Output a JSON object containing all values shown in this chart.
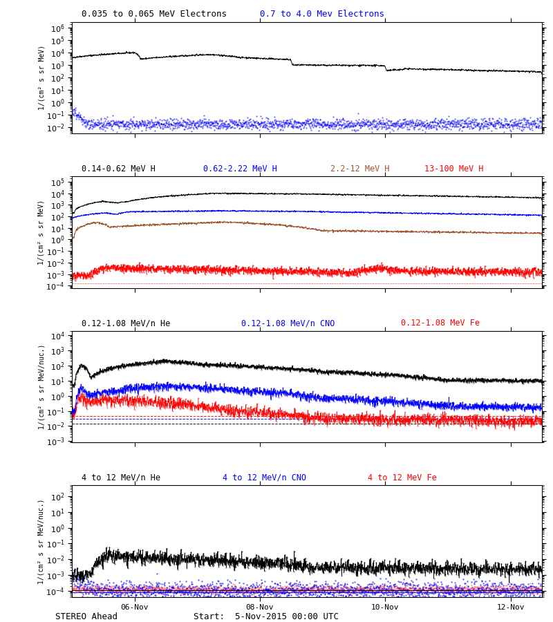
{
  "title_panel1_black": "0.035 to 0.065 MeV Electrons",
  "title_panel1_blue": "0.7 to 4.0 Mev Electrons",
  "ylabel_panel1": "1/(cm² s sr MeV)",
  "ylabel_panel2": "1/(cm² s sr MeV)",
  "ylabel_panel3": "1/(cm² s sr MeV/nuc.)",
  "ylabel_panel4": "1/(cm² s sr MeV/nuc.)",
  "xtick_labels": [
    "06-Nov",
    "08-Nov",
    "10-Nov",
    "12-Nov"
  ],
  "bg_color": "#ffffff",
  "panel1_ylim": [
    0.003,
    3000000.0
  ],
  "panel2_ylim": [
    6e-05,
    300000.0
  ],
  "panel3_ylim": [
    0.0008,
    20000.0
  ],
  "panel4_ylim": [
    4e-05,
    500.0
  ],
  "colors": {
    "black": "#000000",
    "blue": "#0000ff",
    "brown": "#a0522d",
    "red": "#ff0000"
  },
  "seed": 42
}
